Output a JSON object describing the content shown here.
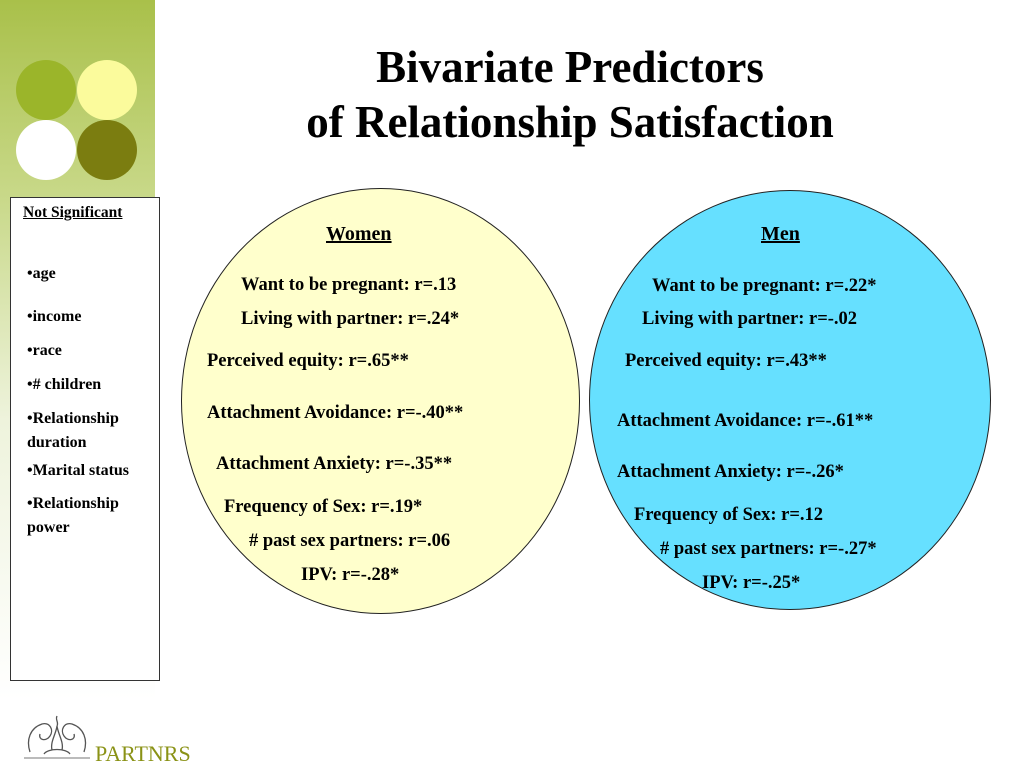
{
  "title": {
    "line1": "Bivariate Predictors",
    "line2": "of Relationship Satisfaction"
  },
  "not_significant": {
    "header": "Not Significant",
    "items": [
      "•age",
      "•income",
      "•race",
      "•# children",
      "•Relationship duration",
      "•Marital status",
      "•Relationship power"
    ]
  },
  "women": {
    "heading": "Women",
    "stats": [
      "Want to be pregnant: r=.13",
      "Living with partner: r=.24*",
      "Perceived equity: r=.65**",
      "Attachment Avoidance: r=-.40**",
      "Attachment Anxiety: r=-.35**",
      "Frequency of Sex: r=.19*",
      "# past sex partners: r=.06",
      "IPV: r=-.28*"
    ]
  },
  "men": {
    "heading": "Men",
    "stats": [
      "Want to be pregnant: r=.22*",
      "Living with partner: r=-.02",
      "Perceived equity: r=.43**",
      "Attachment Avoidance: r=-.61**",
      "Attachment Anxiety: r=-.26*",
      "Frequency of Sex: r=.12",
      "# past sex partners: r=-.27*",
      "IPV: r=-.25*"
    ]
  },
  "logo": {
    "text": "PARTNRS"
  },
  "colors": {
    "women_fill": "#ffffcc",
    "men_fill": "#66e0ff",
    "accent_green": "#9bb52a",
    "accent_yellow": "#fbfb9c",
    "accent_olive": "#7b7d10",
    "logo_text": "#8a9216"
  }
}
